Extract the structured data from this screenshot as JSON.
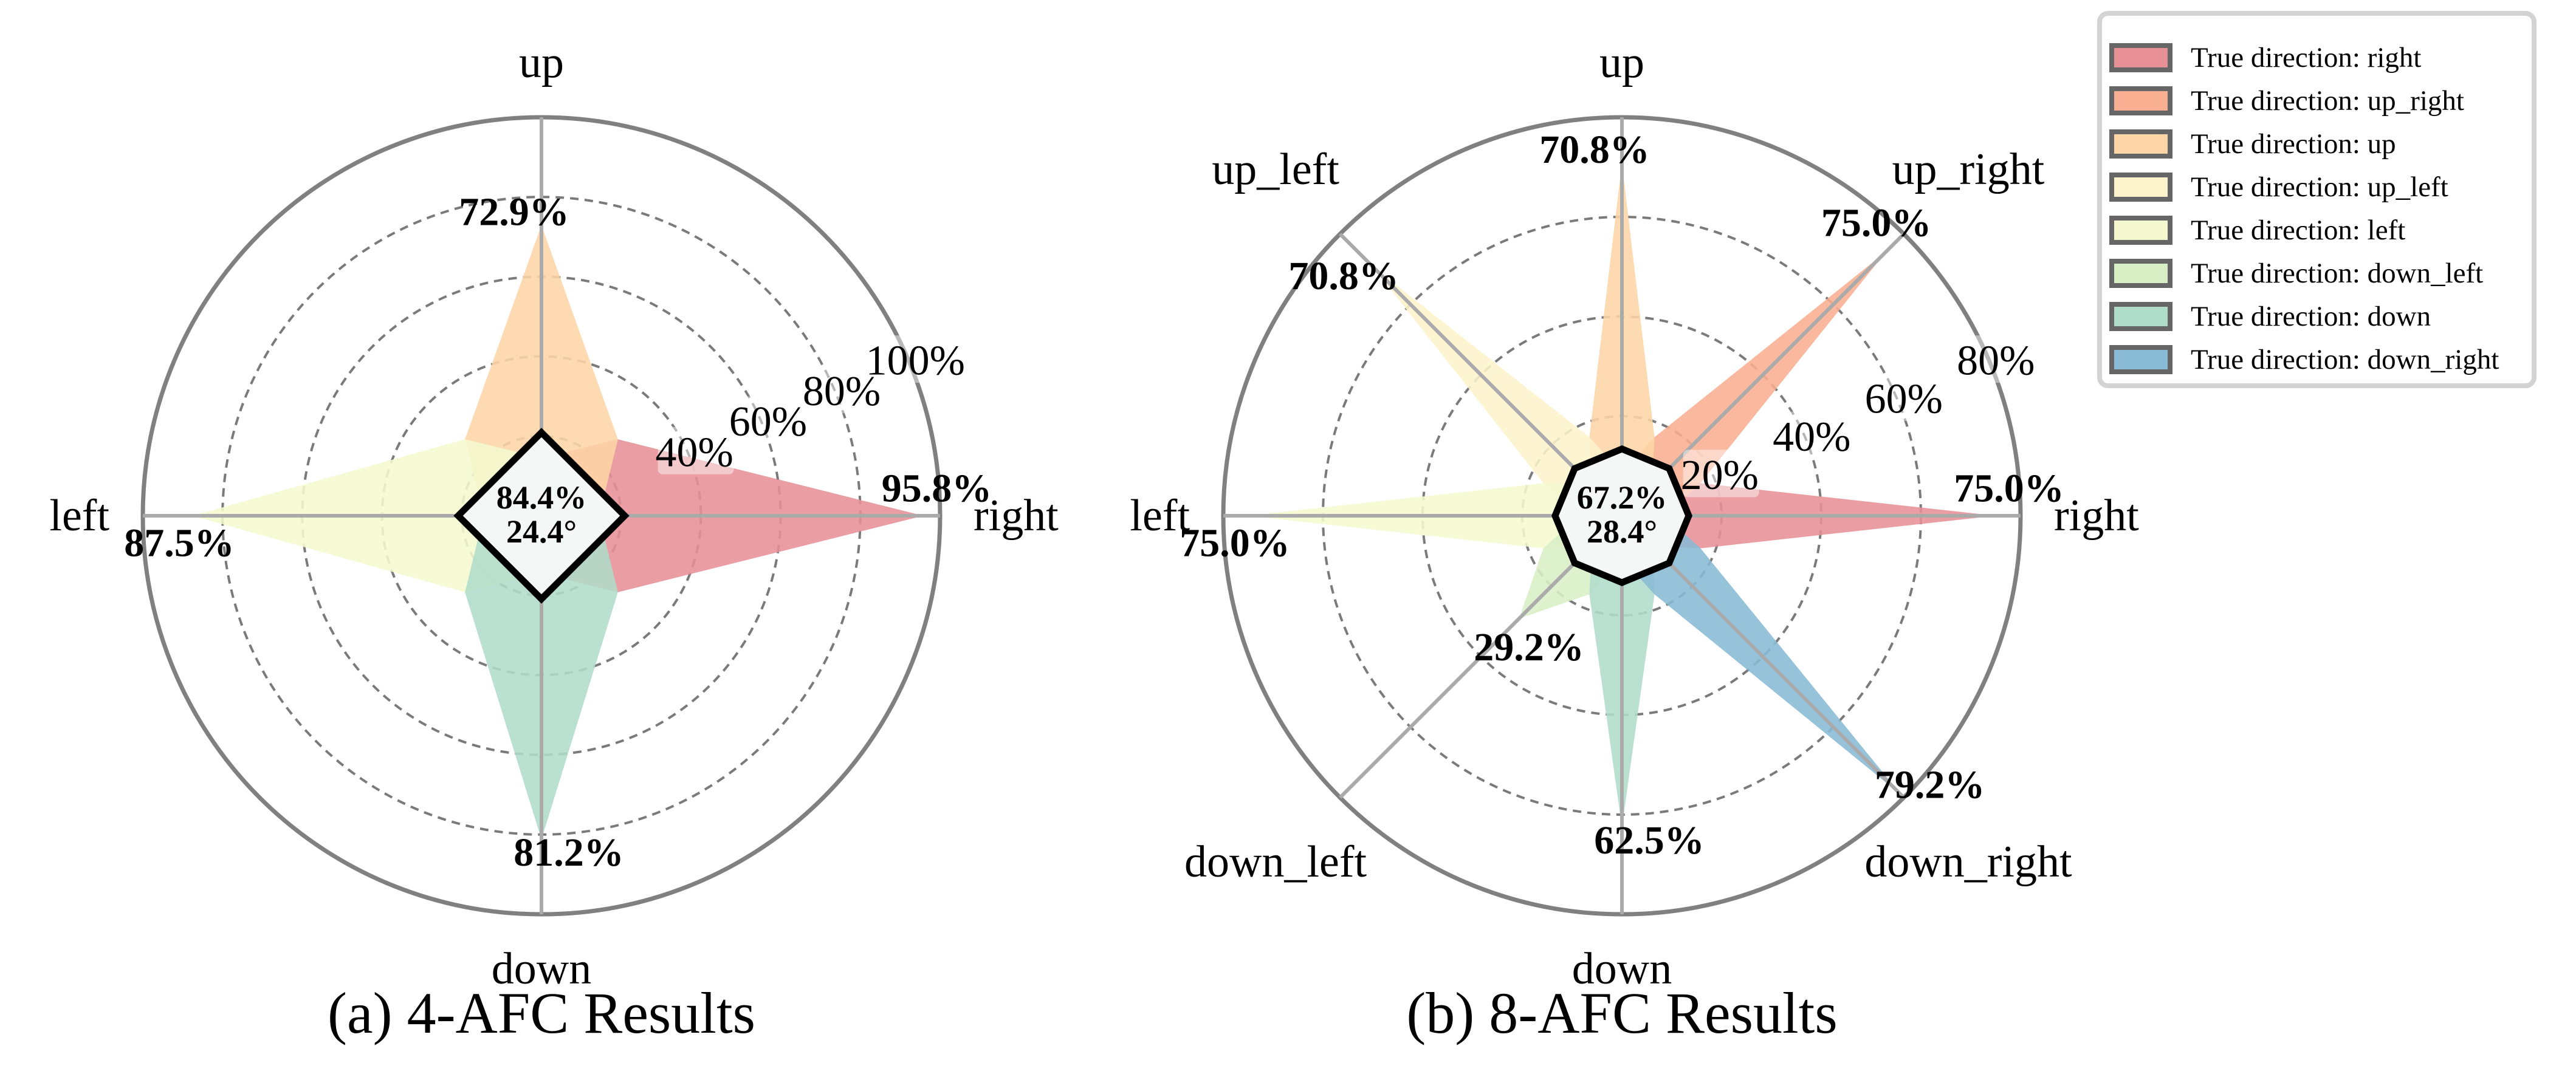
{
  "legend": {
    "entries": [
      {
        "label": "True direction: right",
        "color": "#e79196"
      },
      {
        "label": "True direction: up_right",
        "color": "#f9af91"
      },
      {
        "label": "True direction: up",
        "color": "#fdd5a6"
      },
      {
        "label": "True direction: up_left",
        "color": "#fdf3cc"
      },
      {
        "label": "True direction: left",
        "color": "#f5f9cf"
      },
      {
        "label": "True direction: down_left",
        "color": "#d8efc6"
      },
      {
        "label": "True direction: down",
        "color": "#afdcc9"
      },
      {
        "label": "True direction: down_right",
        "color": "#88b9d5"
      }
    ]
  },
  "chart_data": [
    {
      "type": "radar",
      "caption": "(a) 4-AFC Results",
      "categories": [
        "right",
        "up",
        "left",
        "down"
      ],
      "values": [
        95.8,
        72.9,
        87.5,
        81.2
      ],
      "value_labels": [
        "95.8%",
        "72.9%",
        "87.5%",
        "81.2%"
      ],
      "colors": [
        "#e79196",
        "#fdd5a6",
        "#f5f9cf",
        "#afdcc9"
      ],
      "center_accuracy": "84.4%",
      "center_angle_error": "24.4°",
      "rlim": [
        0,
        100
      ],
      "ticks": [
        20,
        40,
        60,
        80,
        100
      ],
      "tick_labels": [
        "40%",
        "60%",
        "80%",
        "100%"
      ],
      "tick_label_values": [
        40,
        60,
        80,
        100
      ],
      "grid": true
    },
    {
      "type": "radar",
      "caption": "(b) 8-AFC Results",
      "categories": [
        "right",
        "up_right",
        "up",
        "up_left",
        "left",
        "down_left",
        "down",
        "down_right"
      ],
      "values": [
        75.0,
        75.0,
        70.8,
        70.8,
        75.0,
        29.2,
        62.5,
        79.2
      ],
      "value_labels": [
        "75.0%",
        "75.0%",
        "70.8%",
        "70.8%",
        "75.0%",
        "29.2%",
        "62.5%",
        "79.2%"
      ],
      "colors": [
        "#e79196",
        "#f9af91",
        "#fdd5a6",
        "#fdf3cc",
        "#f5f9cf",
        "#d8efc6",
        "#afdcc9",
        "#88b9d5"
      ],
      "center_accuracy": "67.2%",
      "center_angle_error": "28.4°",
      "rlim": [
        0,
        80
      ],
      "ticks": [
        20,
        40,
        60,
        80
      ],
      "tick_labels": [
        "20%",
        "40%",
        "60%",
        "80%"
      ],
      "tick_label_values": [
        20,
        40,
        60,
        80
      ],
      "grid": true,
      "legend_placement": "top-right"
    }
  ]
}
